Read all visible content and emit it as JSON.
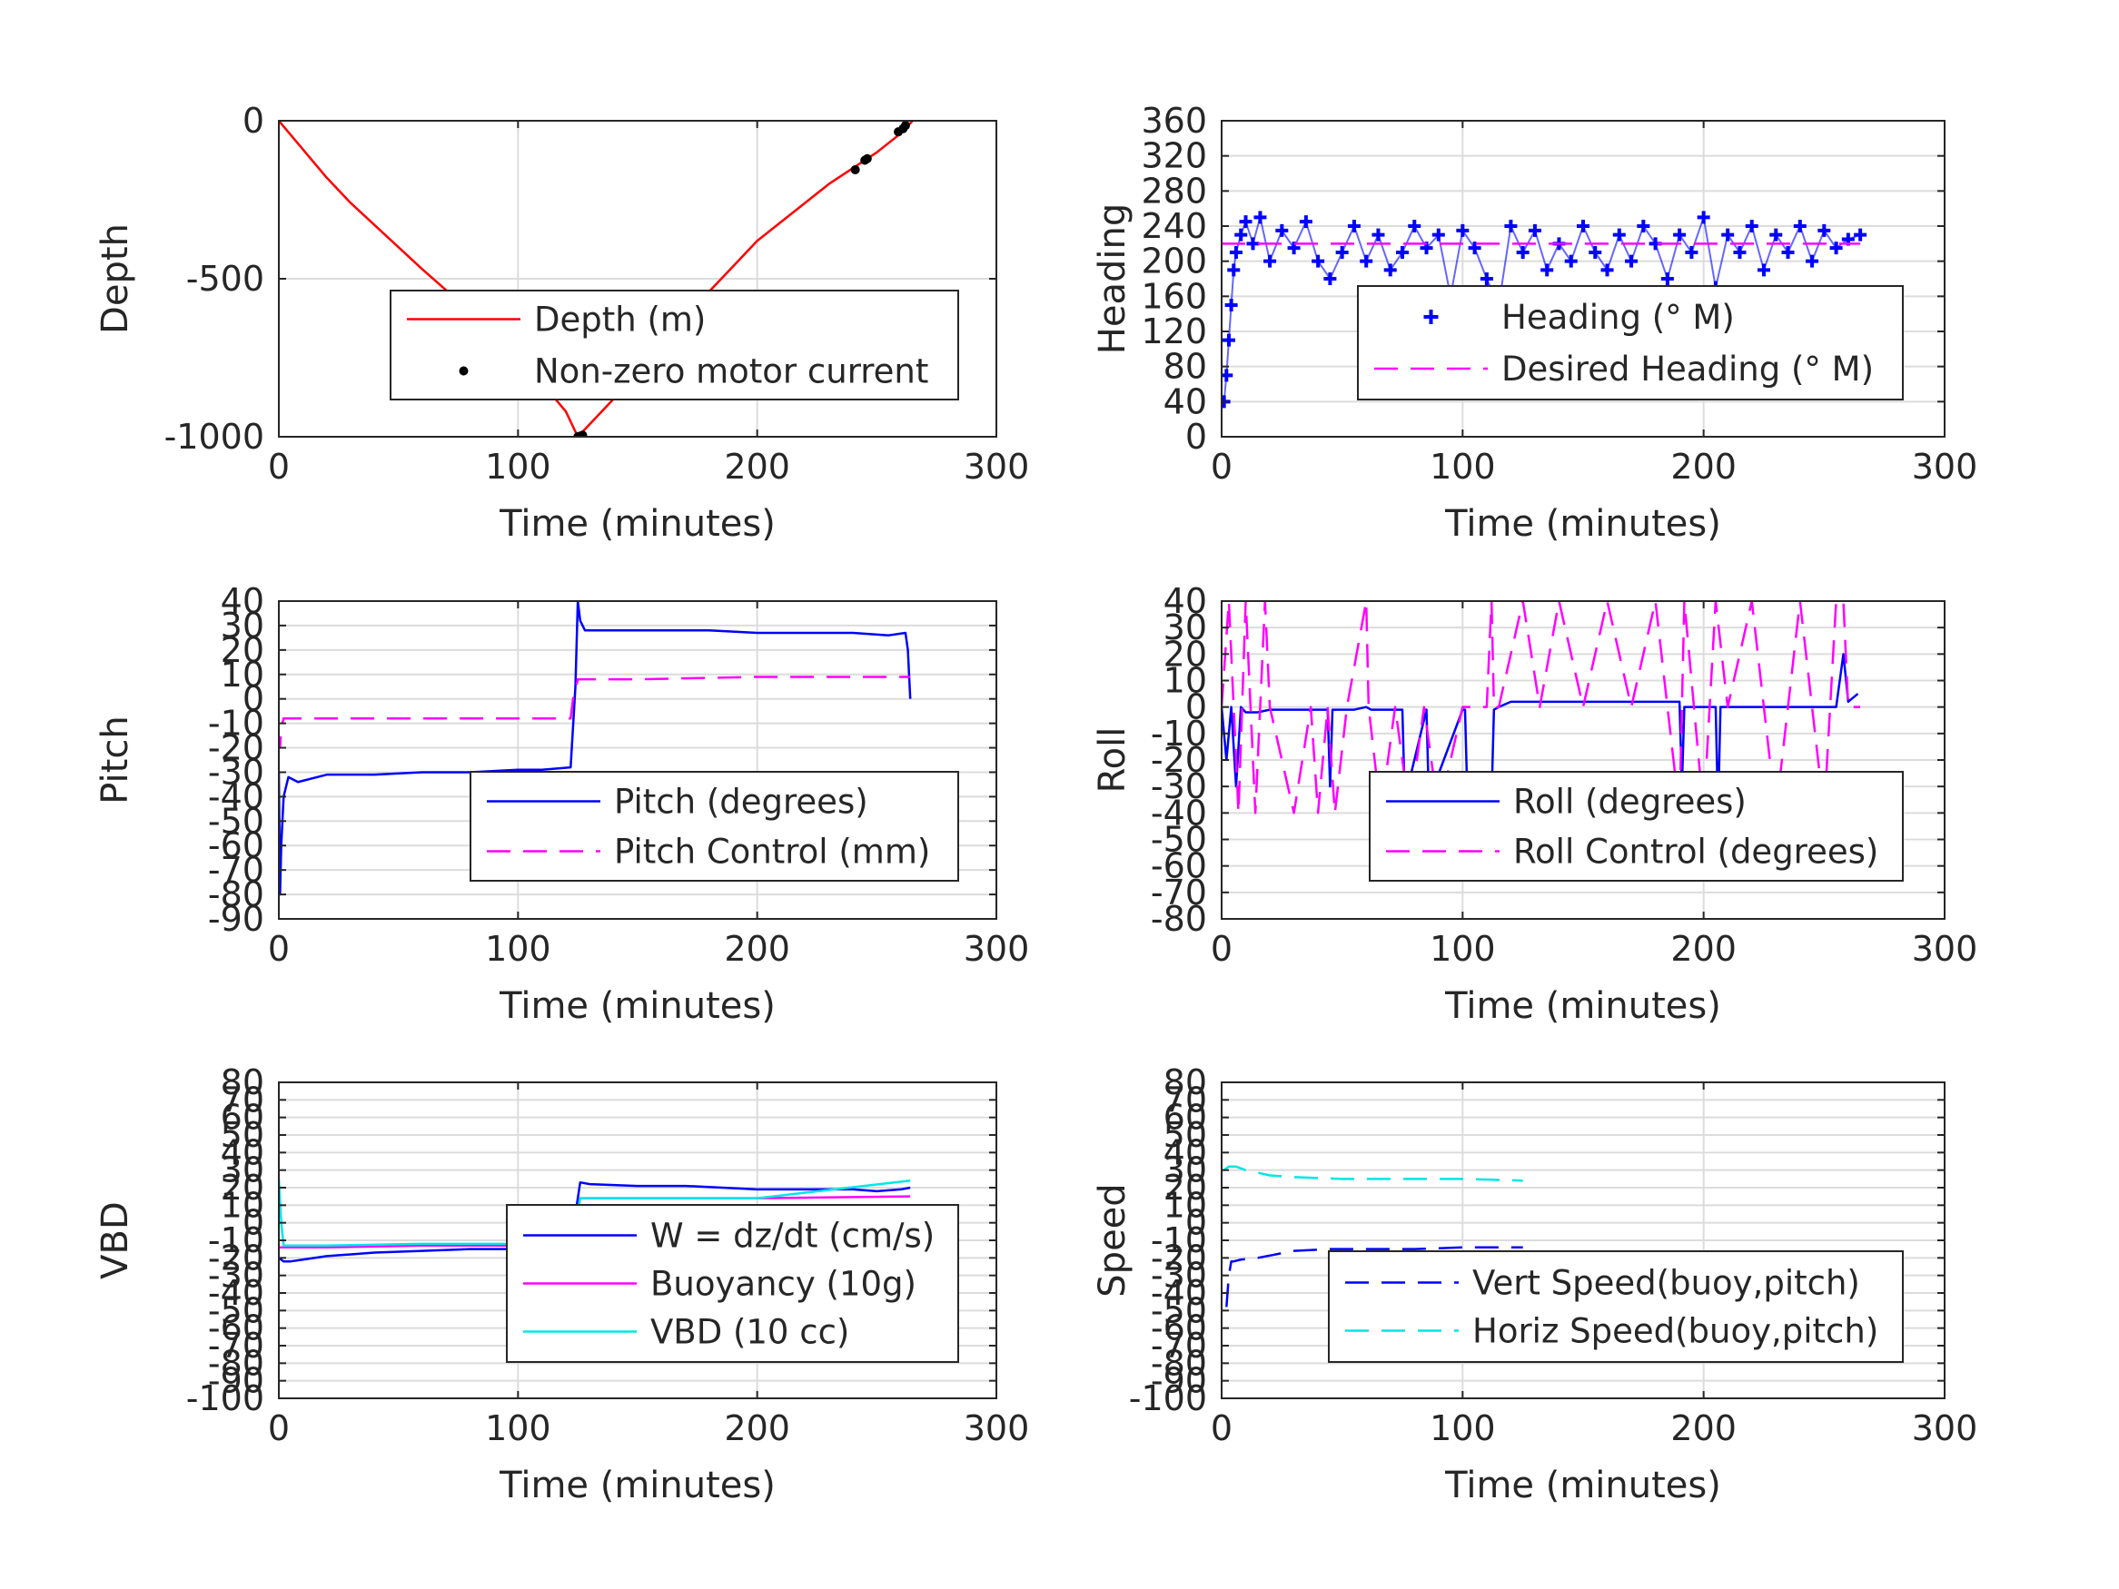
{
  "chart_data": [
    {
      "type": "line",
      "xlabel": "Time (minutes)",
      "ylabel": "Depth",
      "xlim": [
        0,
        300
      ],
      "ylim": [
        -1000,
        0
      ],
      "xticks": [
        0,
        100,
        200,
        300
      ],
      "yticks": [
        -1000,
        -500,
        0
      ],
      "xtick_labels": [
        "0",
        "100",
        "200",
        "300"
      ],
      "ytick_labels": [
        "-1000",
        "-500",
        "0"
      ],
      "grid": true,
      "legend_position": "center-right",
      "series": [
        {
          "name": "Depth (m)",
          "color": "#ff0000",
          "style": "solid",
          "x": [
            0,
            10,
            20,
            30,
            40,
            50,
            60,
            75,
            90,
            100,
            110,
            120,
            125,
            130,
            140,
            150,
            160,
            170,
            180,
            190,
            200,
            210,
            220,
            230,
            240,
            250,
            260,
            265
          ],
          "y": [
            0,
            -90,
            -180,
            -260,
            -330,
            -400,
            -470,
            -570,
            -680,
            -750,
            -830,
            -920,
            -1000,
            -960,
            -880,
            -790,
            -700,
            -620,
            -540,
            -460,
            -380,
            -320,
            -260,
            -200,
            -150,
            -100,
            -40,
            0
          ]
        },
        {
          "name": "Non-zero motor current",
          "color": "#000000",
          "style": "marker",
          "x": [
            125,
            126,
            127,
            241,
            245,
            246,
            259,
            261,
            262
          ],
          "y": [
            -1000,
            -998,
            -995,
            -155,
            -125,
            -120,
            -35,
            -25,
            -15
          ]
        }
      ]
    },
    {
      "type": "line",
      "xlabel": "Time (minutes)",
      "ylabel": "Heading",
      "xlim": [
        0,
        300
      ],
      "ylim": [
        0,
        360
      ],
      "xticks": [
        0,
        100,
        200,
        300
      ],
      "yticks": [
        0,
        40,
        80,
        120,
        160,
        200,
        240,
        280,
        320,
        360
      ],
      "xtick_labels": [
        "0",
        "100",
        "200",
        "300"
      ],
      "ytick_labels": [
        "0",
        "40",
        "80",
        "120",
        "160",
        "200",
        "240",
        "280",
        "320",
        "360"
      ],
      "grid": true,
      "legend_position": "center-right",
      "series": [
        {
          "name": "Heading (° M)",
          "color": "#0000ff",
          "style": "plus",
          "x": [
            1,
            2,
            3,
            4,
            5,
            6,
            8,
            10,
            13,
            16,
            20,
            25,
            30,
            35,
            40,
            45,
            50,
            55,
            60,
            65,
            70,
            75,
            80,
            85,
            90,
            95,
            100,
            105,
            110,
            115,
            120,
            125,
            130,
            135,
            140,
            145,
            150,
            155,
            160,
            165,
            170,
            175,
            180,
            185,
            190,
            195,
            200,
            205,
            210,
            215,
            220,
            225,
            230,
            235,
            240,
            245,
            250,
            255,
            260,
            265
          ],
          "y": [
            40,
            70,
            110,
            150,
            190,
            210,
            230,
            245,
            220,
            250,
            200,
            235,
            215,
            245,
            200,
            180,
            210,
            240,
            200,
            230,
            190,
            210,
            240,
            215,
            230,
            160,
            235,
            215,
            180,
            150,
            240,
            210,
            235,
            190,
            220,
            200,
            240,
            210,
            190,
            230,
            200,
            240,
            220,
            180,
            230,
            210,
            250,
            170,
            230,
            210,
            240,
            190,
            230,
            210,
            240,
            200,
            235,
            215,
            225,
            230
          ]
        },
        {
          "name": "Desired Heading (° M)",
          "color": "#ff00ff",
          "style": "dashed",
          "x": [
            0,
            265
          ],
          "y": [
            220,
            220
          ]
        }
      ]
    },
    {
      "type": "line",
      "xlabel": "Time (minutes)",
      "ylabel": "Pitch",
      "xlim": [
        0,
        300
      ],
      "ylim": [
        -90,
        40
      ],
      "xticks": [
        0,
        100,
        200,
        300
      ],
      "yticks": [
        -90,
        -80,
        -70,
        -60,
        -50,
        -40,
        -30,
        -20,
        -10,
        0,
        10,
        20,
        30,
        40
      ],
      "xtick_labels": [
        "0",
        "100",
        "200",
        "300"
      ],
      "ytick_labels": [
        "-90",
        "-80",
        "-70",
        "-60",
        "-50",
        "-40",
        "-30",
        "-20",
        "-10",
        "0",
        "10",
        "20",
        "30",
        "40"
      ],
      "grid": true,
      "legend_position": "center-right",
      "series": [
        {
          "name": "Pitch (degrees)",
          "color": "#0000ff",
          "style": "solid",
          "x": [
            0,
            0.5,
            1,
            2,
            4,
            8,
            20,
            40,
            60,
            80,
            100,
            110,
            122,
            124,
            125,
            126,
            128,
            140,
            160,
            180,
            200,
            220,
            240,
            255,
            262,
            263,
            264
          ],
          "y": [
            -30,
            -80,
            -60,
            -40,
            -32,
            -34,
            -31,
            -31,
            -30,
            -30,
            -29,
            -29,
            -28,
            5,
            40,
            32,
            28,
            28,
            28,
            28,
            27,
            27,
            27,
            26,
            27,
            20,
            0
          ]
        },
        {
          "name": "Pitch Control (mm)",
          "color": "#ff00ff",
          "style": "dashed",
          "x": [
            0,
            0.5,
            1,
            2,
            30,
            80,
            122,
            123,
            125,
            150,
            200,
            264
          ],
          "y": [
            -15,
            -20,
            -12,
            -8,
            -8,
            -8,
            -8,
            0,
            8,
            8,
            9,
            9
          ]
        }
      ]
    },
    {
      "type": "line",
      "xlabel": "Time (minutes)",
      "ylabel": "Roll",
      "xlim": [
        0,
        300
      ],
      "ylim": [
        -80,
        40
      ],
      "xticks": [
        0,
        100,
        200,
        300
      ],
      "yticks": [
        -80,
        -70,
        -60,
        -50,
        -40,
        -30,
        -20,
        -10,
        0,
        10,
        20,
        30,
        40
      ],
      "xtick_labels": [
        "0",
        "100",
        "200",
        "300"
      ],
      "ytick_labels": [
        "-80",
        "-70",
        "-60",
        "-50",
        "-40",
        "-30",
        "-20",
        "-10",
        "0",
        "10",
        "20",
        "30",
        "40"
      ],
      "grid": true,
      "legend_position": "center-right",
      "series": [
        {
          "name": "Roll (degrees)",
          "color": "#0000ff",
          "style": "solid",
          "x": [
            0,
            2,
            4,
            6,
            8,
            10,
            15,
            20,
            30,
            44,
            45,
            46,
            55,
            60,
            62,
            70,
            75,
            76,
            85,
            86,
            100,
            101,
            102,
            112,
            113,
            115,
            120,
            130,
            150,
            180,
            190,
            191,
            192,
            205,
            206,
            207,
            230,
            255,
            258,
            260,
            264
          ],
          "y": [
            0,
            -20,
            0,
            -30,
            0,
            -2,
            -2,
            -1,
            -1,
            -1,
            -30,
            -1,
            -1,
            0,
            -1,
            -1,
            -1,
            -35,
            -1,
            -35,
            -1,
            -1,
            -35,
            -35,
            -1,
            0,
            2,
            2,
            2,
            2,
            2,
            -30,
            0,
            0,
            -40,
            0,
            0,
            0,
            20,
            2,
            5
          ]
        },
        {
          "name": "Roll Control (degrees)",
          "color": "#ff00ff",
          "style": "dashed",
          "x": [
            0,
            3,
            5,
            7,
            10,
            14,
            18,
            20,
            25,
            30,
            37,
            40,
            44,
            47,
            52,
            60,
            61,
            66,
            72,
            78,
            84,
            90,
            100,
            110,
            112,
            113,
            115,
            125,
            132,
            140,
            150,
            160,
            170,
            180,
            190,
            192,
            200,
            205,
            210,
            220,
            230,
            240,
            250,
            255,
            258,
            260,
            265
          ],
          "y": [
            0,
            40,
            0,
            -40,
            40,
            -40,
            40,
            0,
            -20,
            -40,
            0,
            -40,
            0,
            -40,
            0,
            40,
            0,
            -40,
            0,
            -40,
            0,
            -40,
            0,
            0,
            40,
            0,
            0,
            40,
            0,
            40,
            0,
            40,
            0,
            40,
            -40,
            40,
            -40,
            40,
            0,
            40,
            -40,
            40,
            -40,
            40,
            40,
            0,
            0
          ]
        }
      ]
    },
    {
      "type": "line",
      "xlabel": "Time (minutes)",
      "ylabel": "VBD",
      "xlim": [
        0,
        300
      ],
      "ylim": [
        -100,
        80
      ],
      "xticks": [
        0,
        100,
        200,
        300
      ],
      "yticks": [
        -100,
        -90,
        -80,
        -70,
        -60,
        -50,
        -40,
        -30,
        -20,
        -10,
        0,
        10,
        20,
        30,
        40,
        50,
        60,
        70,
        80
      ],
      "xtick_labels": [
        "0",
        "100",
        "200",
        "300"
      ],
      "ytick_labels": [
        "-100",
        "-90",
        "-80",
        "-70",
        "-60",
        "-50",
        "-40",
        "-30",
        "-20",
        "-10",
        "0",
        "10",
        "20",
        "30",
        "40",
        "50",
        "60",
        "70",
        "80"
      ],
      "grid": true,
      "legend_position": "center-right",
      "series": [
        {
          "name": "W = dz/dt (cm/s)",
          "color": "#0000ff",
          "style": "solid",
          "x": [
            0,
            2,
            5,
            10,
            20,
            40,
            60,
            80,
            100,
            110,
            120,
            123,
            124,
            126,
            130,
            150,
            170,
            200,
            220,
            240,
            250,
            260,
            264
          ],
          "y": [
            -20,
            -22,
            -22,
            -21,
            -19,
            -17,
            -16,
            -15,
            -15,
            -15,
            -14,
            -13,
            5,
            23,
            22,
            21,
            21,
            19,
            19,
            19,
            18,
            19,
            20
          ]
        },
        {
          "name": "Buoyancy (10g)",
          "color": "#ff00ff",
          "style": "solid",
          "x": [
            0,
            5,
            20,
            60,
            100,
            122,
            124,
            126,
            200,
            264
          ],
          "y": [
            -14,
            -14,
            -14,
            -13,
            -13,
            -13,
            0,
            14,
            14,
            15
          ]
        },
        {
          "name": "VBD (10 cc)",
          "color": "#00e6e6",
          "style": "solid",
          "x": [
            0,
            1,
            2,
            5,
            20,
            60,
            100,
            122,
            124,
            126,
            130,
            200,
            264
          ],
          "y": [
            25,
            0,
            -13,
            -13,
            -13,
            -12,
            -12,
            -12,
            0,
            14,
            14,
            14,
            24
          ]
        }
      ]
    },
    {
      "type": "line",
      "xlabel": "Time (minutes)",
      "ylabel": "Speed",
      "xlim": [
        0,
        300
      ],
      "ylim": [
        -100,
        80
      ],
      "xticks": [
        0,
        100,
        200,
        300
      ],
      "yticks": [
        -100,
        -90,
        -80,
        -70,
        -60,
        -50,
        -40,
        -30,
        -20,
        -10,
        0,
        10,
        20,
        30,
        40,
        50,
        60,
        70,
        80
      ],
      "xtick_labels": [
        "0",
        "100",
        "200",
        "300"
      ],
      "ytick_labels": [
        "-100",
        "-90",
        "-80",
        "-70",
        "-60",
        "-50",
        "-40",
        "-30",
        "-20",
        "-10",
        "0",
        "10",
        "20",
        "30",
        "40",
        "50",
        "60",
        "70",
        "80"
      ],
      "grid": true,
      "legend_position": "center-right",
      "series": [
        {
          "name": "Vert Speed(buoy,pitch)",
          "color": "#0000ff",
          "style": "dashed",
          "x": [
            2,
            3,
            4,
            5,
            8,
            15,
            30,
            45,
            60,
            80,
            100,
            125
          ],
          "y": [
            -48,
            -30,
            -22,
            -22,
            -21,
            -20,
            -16,
            -15,
            -15,
            -15,
            -14,
            -14
          ]
        },
        {
          "name": "Horiz Speed(buoy,pitch)",
          "color": "#00e6e6",
          "style": "dashed",
          "x": [
            1,
            3,
            6,
            10,
            20,
            30,
            50,
            80,
            100,
            125
          ],
          "y": [
            30,
            32,
            32,
            30,
            27,
            26,
            25,
            25,
            25,
            24
          ]
        }
      ]
    }
  ]
}
